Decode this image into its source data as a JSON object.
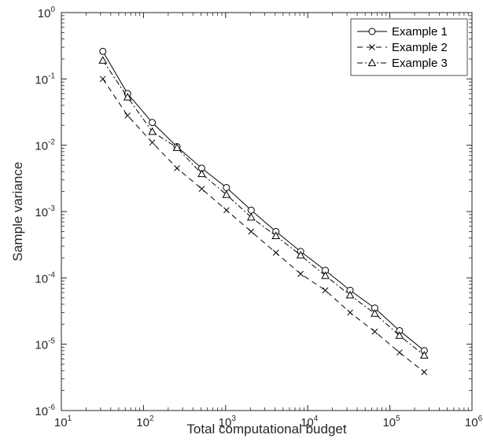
{
  "chart_data": {
    "type": "line",
    "xlabel": "Total computational budget",
    "ylabel": "Sample variance",
    "xscale": "log",
    "yscale": "log",
    "xlim": [
      10,
      1000000
    ],
    "ylim": [
      1e-06,
      1
    ],
    "x_ticks": [
      {
        "base": "10",
        "exp": "1"
      },
      {
        "base": "10",
        "exp": "2"
      },
      {
        "base": "10",
        "exp": "3"
      },
      {
        "base": "10",
        "exp": "4"
      },
      {
        "base": "10",
        "exp": "5"
      },
      {
        "base": "10",
        "exp": "6"
      }
    ],
    "y_ticks": [
      {
        "base": "10",
        "exp": "0"
      },
      {
        "base": "10",
        "exp": "-1"
      },
      {
        "base": "10",
        "exp": "-2"
      },
      {
        "base": "10",
        "exp": "-3"
      },
      {
        "base": "10",
        "exp": "-4"
      },
      {
        "base": "10",
        "exp": "-5"
      },
      {
        "base": "10",
        "exp": "-6"
      }
    ],
    "x": [
      32,
      64,
      128,
      256,
      512,
      1024,
      2048,
      4096,
      8192,
      16384,
      32768,
      65536,
      131072,
      262144
    ],
    "series": [
      {
        "name": "Example 1",
        "marker": "circle",
        "line_style": "solid",
        "values": [
          0.26,
          0.06,
          0.022,
          0.0095,
          0.0045,
          0.0023,
          0.00105,
          0.0005,
          0.00025,
          0.00013,
          6.5e-05,
          3.5e-05,
          1.6e-05,
          8e-06
        ]
      },
      {
        "name": "Example 2",
        "marker": "x",
        "line_style": "dashed",
        "values": [
          0.1,
          0.028,
          0.011,
          0.0045,
          0.0022,
          0.00105,
          0.0005,
          0.00024,
          0.000115,
          6.5e-05,
          3e-05,
          1.55e-05,
          7.5e-06,
          3.8e-06
        ]
      },
      {
        "name": "Example 3",
        "marker": "triangle",
        "line_style": "dash-dot",
        "values": [
          0.19,
          0.053,
          0.016,
          0.0092,
          0.0037,
          0.0018,
          0.00082,
          0.00043,
          0.00022,
          0.000108,
          5.5e-05,
          2.9e-05,
          1.35e-05,
          6.8e-06
        ]
      }
    ],
    "grid": false,
    "legend_position": "top-right"
  }
}
